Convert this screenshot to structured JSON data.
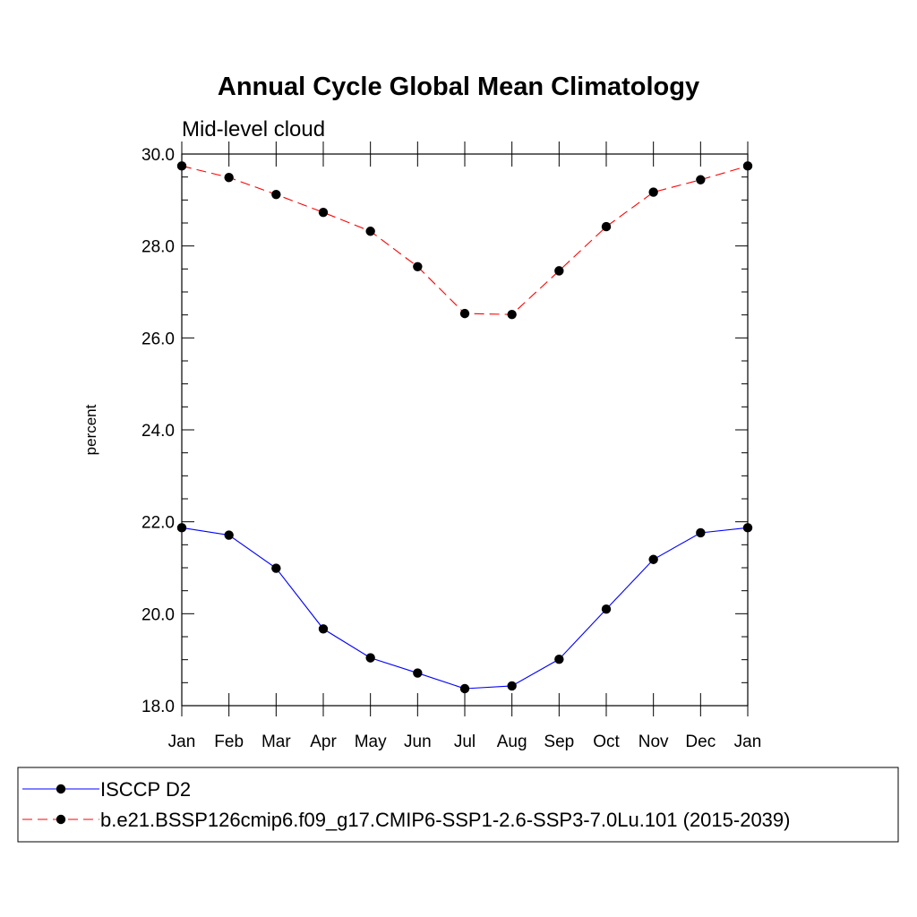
{
  "chart_data": {
    "type": "line",
    "title": "Annual Cycle Global Mean Climatology",
    "subtitle": "Mid-level cloud",
    "xlabel": "",
    "ylabel": "percent",
    "ylim": [
      18.0,
      30.0
    ],
    "yticks": [
      "18.0",
      "20.0",
      "22.0",
      "24.0",
      "26.0",
      "28.0",
      "30.0"
    ],
    "categories": [
      "Jan",
      "Feb",
      "Mar",
      "Apr",
      "May",
      "Jun",
      "Jul",
      "Aug",
      "Sep",
      "Oct",
      "Nov",
      "Dec",
      "Jan"
    ],
    "grid": false,
    "legend_position": "bottom",
    "series": [
      {
        "name": "ISCCP D2",
        "color": "#0000ff",
        "dash": "solid",
        "marker": "filled-circle",
        "values": [
          21.87,
          21.71,
          20.99,
          19.67,
          19.04,
          18.71,
          18.37,
          18.43,
          19.01,
          20.1,
          21.18,
          21.76,
          21.87
        ]
      },
      {
        "name": "b.e21.BSSP126cmip6.f09_g17.CMIP6-SSP1-2.6-SSP3-7.0Lu.101 (2015-2039)",
        "color": "#ff0000",
        "dash": "dashed",
        "marker": "filled-circle",
        "values": [
          29.74,
          29.49,
          29.12,
          28.73,
          28.32,
          27.55,
          26.53,
          26.51,
          27.46,
          28.42,
          29.17,
          29.44,
          29.74
        ]
      }
    ]
  }
}
